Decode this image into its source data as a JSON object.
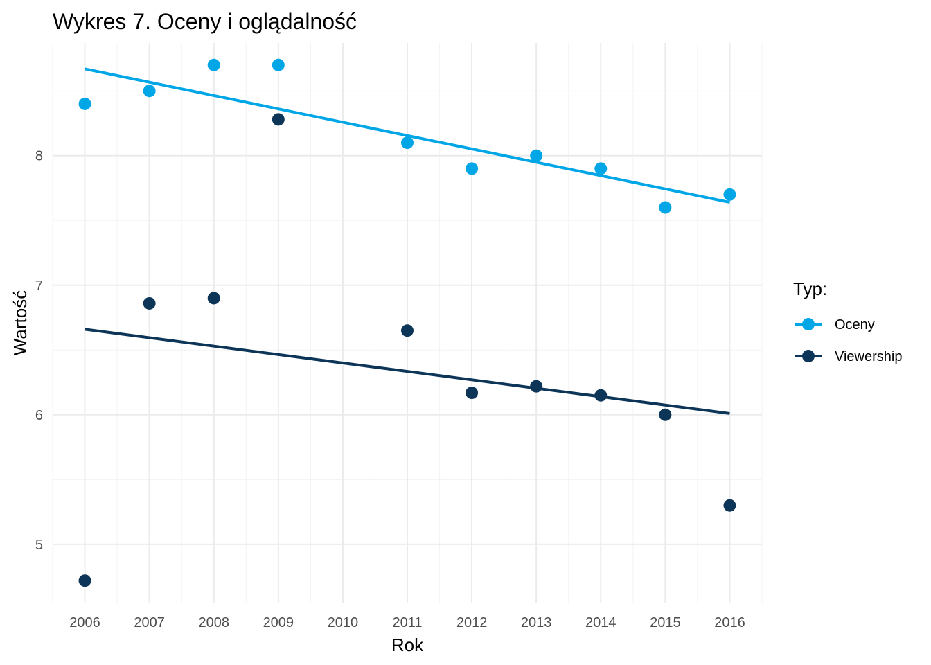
{
  "chart_data": {
    "type": "scatter",
    "title": "Wykres 7. Oceny i oglądalność",
    "xlabel": "Rok",
    "ylabel": "Wartość",
    "x_ticks": [
      "2006",
      "2007",
      "2008",
      "2009",
      "2010",
      "2011",
      "2012",
      "2013",
      "2014",
      "2015",
      "2016"
    ],
    "y_ticks": [
      "5",
      "6",
      "7",
      "8"
    ],
    "xlim": [
      2005.5,
      2016.5
    ],
    "ylim": [
      4.55,
      8.87
    ],
    "grid": true,
    "legend": {
      "title": "Typ:",
      "position": "right"
    },
    "series": [
      {
        "name": "Oceny",
        "color": "#00a6e6",
        "points": [
          {
            "x": 2006,
            "y": 8.4
          },
          {
            "x": 2007,
            "y": 8.5
          },
          {
            "x": 2008,
            "y": 8.7
          },
          {
            "x": 2009,
            "y": 8.7
          },
          {
            "x": 2011,
            "y": 8.1
          },
          {
            "x": 2012,
            "y": 7.9
          },
          {
            "x": 2013,
            "y": 8.0
          },
          {
            "x": 2014,
            "y": 7.9
          },
          {
            "x": 2015,
            "y": 7.6
          },
          {
            "x": 2016,
            "y": 7.7
          }
        ],
        "trend": {
          "x": [
            2006,
            2016
          ],
          "y": [
            8.67,
            7.64
          ]
        }
      },
      {
        "name": "Viewership",
        "color": "#0d3558",
        "points": [
          {
            "x": 2006,
            "y": 4.72
          },
          {
            "x": 2007,
            "y": 6.86
          },
          {
            "x": 2008,
            "y": 6.9
          },
          {
            "x": 2009,
            "y": 8.28
          },
          {
            "x": 2011,
            "y": 6.65
          },
          {
            "x": 2012,
            "y": 6.17
          },
          {
            "x": 2013,
            "y": 6.22
          },
          {
            "x": 2014,
            "y": 6.15
          },
          {
            "x": 2015,
            "y": 6.0
          },
          {
            "x": 2016,
            "y": 5.3
          }
        ],
        "trend": {
          "x": [
            2006,
            2016
          ],
          "y": [
            6.66,
            6.01
          ]
        }
      }
    ]
  }
}
